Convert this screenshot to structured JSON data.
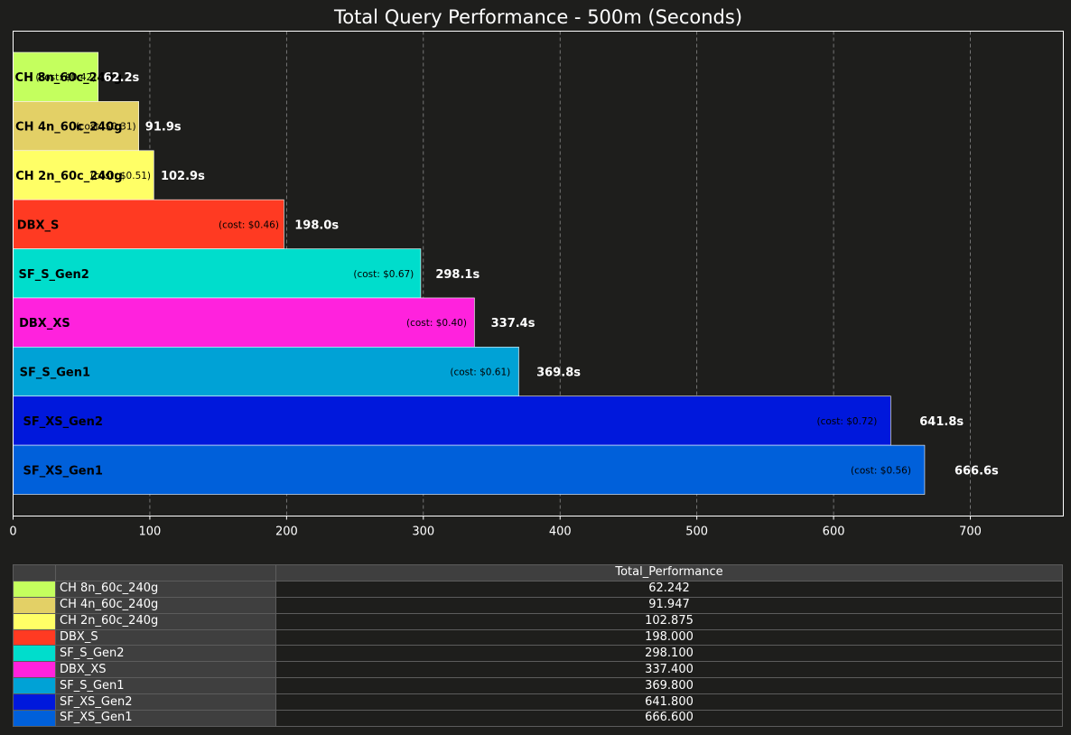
{
  "chart_data": {
    "type": "bar",
    "orientation": "horizontal",
    "title": "Total Query Performance - 500m (Seconds)",
    "xlabel": "",
    "ylabel": "",
    "xlim": [
      0,
      768
    ],
    "xticks": [
      0,
      100,
      200,
      300,
      400,
      500,
      600,
      700
    ],
    "grid": "vertical dashed",
    "categories": [
      "CH 8n_60c_240g",
      "CH 4n_60c_240g",
      "CH 2n_60c_240g",
      "DBX_S",
      "SF_S_Gen2",
      "DBX_XS",
      "SF_S_Gen1",
      "SF_XS_Gen2",
      "SF_XS_Gen1"
    ],
    "values": [
      62.2,
      91.9,
      102.9,
      198.0,
      298.1,
      337.4,
      369.8,
      641.8,
      666.6
    ],
    "value_labels": [
      "62.2s",
      "91.9s",
      "102.9s",
      "198.0s",
      "298.1s",
      "337.4s",
      "369.8s",
      "641.8s",
      "666.6s"
    ],
    "cost_labels": [
      "(cost: $0.42)",
      "(cost: $0.31)",
      "(cost: $0.51)",
      "(cost: $0.46)",
      "(cost: $0.67)",
      "(cost: $0.40)",
      "(cost: $0.61)",
      "(cost: $0.72)",
      "(cost: $0.56)"
    ],
    "colors": [
      "#c4ff5e",
      "#e3d066",
      "#ffff66",
      "#ff3a22",
      "#00ddcc",
      "#ff22dd",
      "#00a2d6",
      "#0018dc",
      "#0060da"
    ]
  },
  "table": {
    "header": [
      "",
      "",
      "Total_Performance"
    ],
    "rows": [
      {
        "name": "CH 8n_60c_240g",
        "value": "62.242"
      },
      {
        "name": "CH 4n_60c_240g",
        "value": "91.947"
      },
      {
        "name": "CH 2n_60c_240g",
        "value": "102.875"
      },
      {
        "name": "DBX_S",
        "value": "198.000"
      },
      {
        "name": "SF_S_Gen2",
        "value": "298.100"
      },
      {
        "name": "DBX_XS",
        "value": "337.400"
      },
      {
        "name": "SF_S_Gen1",
        "value": "369.800"
      },
      {
        "name": "SF_XS_Gen2",
        "value": "641.800"
      },
      {
        "name": "SF_XS_Gen1",
        "value": "666.600"
      }
    ]
  }
}
